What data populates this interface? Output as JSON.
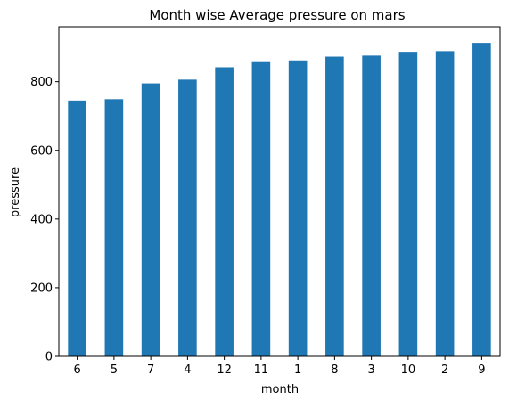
{
  "chart_data": {
    "type": "bar",
    "title": "Month wise Average pressure on mars",
    "xlabel": "month",
    "ylabel": "pressure",
    "categories": [
      "6",
      "5",
      "7",
      "4",
      "12",
      "11",
      "1",
      "8",
      "3",
      "10",
      "2",
      "9"
    ],
    "values": [
      745,
      749,
      795,
      806,
      842,
      857,
      862,
      873,
      876,
      887,
      889,
      913
    ],
    "ylim": [
      0,
      960
    ],
    "yticks": [
      0,
      200,
      400,
      600,
      800
    ],
    "grid": false,
    "legend": "none",
    "bar_color": "#1f77b4"
  }
}
